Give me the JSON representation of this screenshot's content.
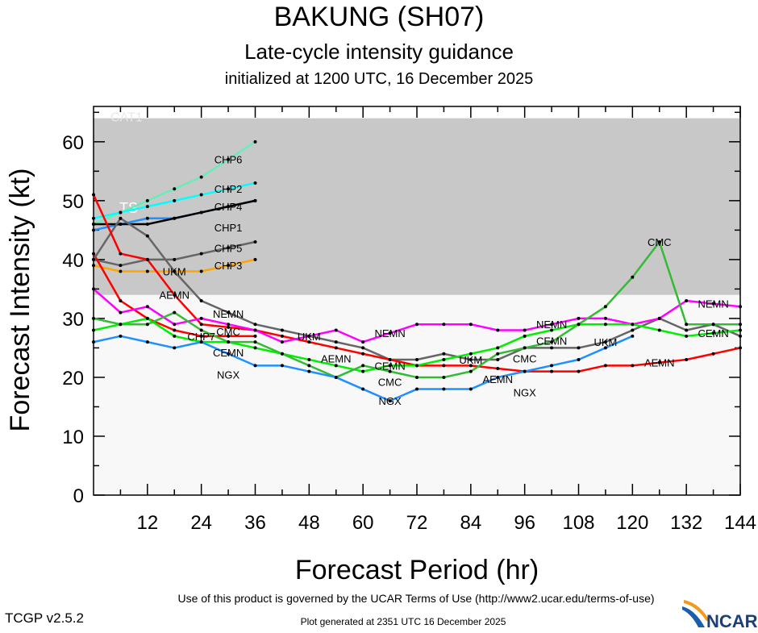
{
  "header": {
    "title": "BAKUNG (SH07)",
    "subtitle": "Late-cycle intensity guidance",
    "init": "initialized at 1200 UTC, 16 December 2025"
  },
  "footer": {
    "terms": "Use of this product is governed by the UCAR Terms of Use (http://www2.ucar.edu/terms-of-use)",
    "version": "TCGP v2.5.2",
    "generated": "Plot generated at 2351 UTC   16 December 2025",
    "logo": "NCAR"
  },
  "chart_data": {
    "type": "line",
    "xlabel": "Forecast Period (hr)",
    "ylabel": "Forecast Intensity (kt)",
    "xlim": [
      0,
      144
    ],
    "ylim": [
      0,
      66
    ],
    "xticks": [
      12,
      24,
      36,
      48,
      60,
      72,
      84,
      96,
      108,
      120,
      132,
      144
    ],
    "yticks": [
      0,
      10,
      20,
      30,
      40,
      50,
      60
    ],
    "bands": [
      {
        "label": "",
        "from": 0,
        "to": 34,
        "color": "#f8f8f8"
      },
      {
        "label": "TS",
        "from": 34,
        "to": 64,
        "color": "#c8c8c8"
      },
      {
        "label": "CAT1",
        "from": 64,
        "to": 66,
        "color": "#ffffff"
      }
    ],
    "series": [
      {
        "name": "CHP6",
        "color": "#66eeb8",
        "x": [
          0,
          6,
          12,
          18,
          24,
          30,
          36
        ],
        "values": [
          46,
          48,
          50,
          52,
          54,
          57,
          60
        ],
        "label_at": [
          30
        ]
      },
      {
        "name": "CHP2",
        "color": "#00ffff",
        "x": [
          0,
          6,
          12,
          18,
          24,
          30,
          36
        ],
        "values": [
          47,
          48,
          49,
          50,
          51,
          52,
          53
        ],
        "label_at": [
          30
        ]
      },
      {
        "name": "CHP4",
        "color": "#1e90ff",
        "x": [
          0,
          6,
          12,
          18,
          24,
          30,
          36
        ],
        "values": [
          45,
          46,
          47,
          47,
          48,
          49,
          50
        ],
        "label_at": [
          30
        ]
      },
      {
        "name": "CHP1",
        "color": "#000000",
        "x": [
          0,
          6,
          12,
          18,
          24,
          30,
          36
        ],
        "values": [
          46,
          46,
          46,
          47,
          48,
          49,
          50
        ],
        "label_at": [
          30
        ]
      },
      {
        "name": "CHP5",
        "color": "#666666",
        "x": [
          0,
          6,
          12,
          18,
          24,
          30,
          36
        ],
        "values": [
          40,
          39,
          40,
          40,
          41,
          42,
          43
        ],
        "label_at": [
          30
        ]
      },
      {
        "name": "CHP3",
        "color": "#ffa500",
        "x": [
          0,
          6,
          12,
          18,
          24,
          30,
          36
        ],
        "values": [
          39,
          38,
          38,
          38,
          38,
          39,
          40
        ],
        "label_at": [
          30
        ]
      },
      {
        "name": "CHP7",
        "color": "#ff0000",
        "x": [
          0,
          6,
          12,
          18,
          24,
          30,
          36
        ],
        "values": [
          41,
          33,
          30,
          28,
          27,
          27,
          27
        ],
        "label_at": [
          24
        ]
      },
      {
        "name": "UKM",
        "color": "#666666",
        "x": [
          0,
          6,
          12,
          18,
          24,
          30,
          36,
          42,
          48,
          54,
          60,
          66,
          72,
          78,
          84,
          90,
          96,
          102,
          108,
          114,
          120,
          126,
          132,
          138,
          144
        ],
        "values": [
          40,
          47,
          44,
          38,
          33,
          31,
          29,
          28,
          27,
          26,
          25,
          23,
          23,
          24,
          23,
          23,
          25,
          25,
          25,
          26,
          28,
          30,
          28,
          29,
          27
        ],
        "label_at": [
          18,
          48,
          84,
          114
        ]
      },
      {
        "name": "AEMN",
        "color": "#ff0000",
        "x": [
          0,
          6,
          12,
          18,
          24,
          30,
          36,
          42,
          48,
          54,
          60,
          66,
          72,
          78,
          84,
          90,
          96,
          102,
          108,
          114,
          120,
          126,
          132,
          138,
          144
        ],
        "values": [
          51,
          41,
          40,
          34,
          29,
          28.5,
          28,
          27,
          26,
          25,
          24,
          23,
          22,
          22,
          22,
          21.5,
          21,
          21,
          21,
          22,
          22,
          22.5,
          23,
          24,
          25
        ],
        "label_at": [
          18,
          54,
          90,
          126
        ]
      },
      {
        "name": "NEMN",
        "color": "#ff00ff",
        "x": [
          0,
          6,
          12,
          18,
          24,
          30,
          36,
          42,
          48,
          54,
          60,
          66,
          72,
          78,
          84,
          90,
          96,
          102,
          108,
          114,
          120,
          126,
          132,
          138,
          144
        ],
        "values": [
          35,
          31,
          32,
          29,
          30,
          29,
          28,
          26,
          27,
          28,
          26,
          27.5,
          29,
          29,
          29,
          28,
          28,
          29,
          30,
          30,
          29,
          30,
          33,
          32.5,
          32
        ],
        "label_at": [
          30,
          66,
          102,
          138
        ]
      },
      {
        "name": "CEMN",
        "color": "#00ee00",
        "x": [
          0,
          6,
          12,
          18,
          24,
          30,
          36,
          42,
          48,
          54,
          60,
          66,
          72,
          78,
          84,
          90,
          96,
          102,
          108,
          114,
          120,
          126,
          132,
          138,
          144
        ],
        "values": [
          28,
          29,
          30,
          27,
          26,
          26,
          25,
          24,
          23,
          22,
          21,
          22,
          22,
          23,
          24,
          25,
          27,
          28,
          29,
          29,
          29,
          28,
          27,
          27.5,
          28
        ],
        "label_at": [
          30,
          66,
          102,
          138
        ]
      },
      {
        "name": "CMC",
        "color": "#33bb33",
        "x": [
          0,
          6,
          12,
          18,
          24,
          30,
          36,
          42,
          48,
          54,
          60,
          66,
          72,
          78,
          84,
          90,
          96,
          102,
          108,
          114,
          120,
          126,
          132,
          138,
          144
        ],
        "values": [
          30,
          29,
          29,
          31,
          28,
          26,
          26,
          24,
          22,
          20,
          22,
          21,
          20,
          20,
          21,
          24,
          25,
          26,
          29,
          32,
          37,
          43,
          29,
          29,
          29
        ],
        "label_at": [
          30,
          66,
          96,
          126
        ]
      },
      {
        "name": "NGX",
        "color": "#1e90ff",
        "x": [
          0,
          6,
          12,
          18,
          24,
          30,
          36,
          42,
          48,
          54,
          60,
          66,
          72,
          78,
          84,
          90,
          96,
          102,
          108,
          114,
          120
        ],
        "values": [
          26,
          27,
          26,
          25,
          26,
          24,
          22,
          22,
          21,
          20,
          18,
          16,
          18,
          18,
          18,
          20,
          21,
          22,
          23,
          25,
          27
        ],
        "label_at": [
          30,
          66,
          96
        ]
      }
    ]
  }
}
